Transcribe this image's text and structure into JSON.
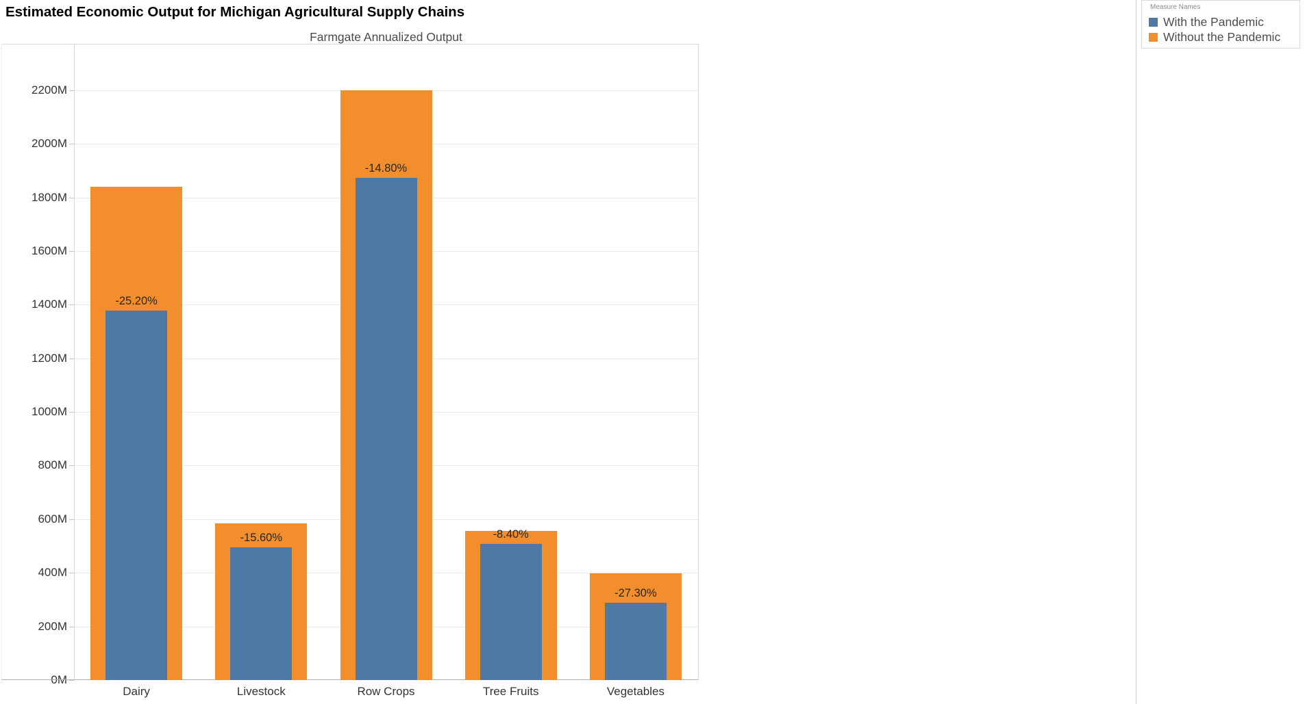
{
  "page": {
    "title": "Estimated Economic Output for Michigan Agricultural Supply Chains"
  },
  "chart_data": {
    "type": "bar",
    "title": "Farmgate Annualized Output",
    "units": "millions USD",
    "categories": [
      "Dairy",
      "Livestock",
      "Row Crops",
      "Tree Fruits",
      "Vegetables"
    ],
    "series": [
      {
        "name": "With the Pandemic",
        "color": "#4e79a7",
        "values": [
          1377,
          494,
          1874,
          509,
          289
        ]
      },
      {
        "name": "Without the Pandemic",
        "color": "#f28e2b",
        "values": [
          1841,
          585,
          2199,
          556,
          397
        ]
      }
    ],
    "bar_labels": [
      "-25.20%",
      "-15.60%",
      "-14.80%",
      "-8.40%",
      "-27.30%"
    ],
    "y_tick_values": [
      0,
      200,
      400,
      600,
      800,
      1000,
      1200,
      1400,
      1600,
      1800,
      2000,
      2200
    ],
    "y_tick_labels": [
      "0M",
      "200M",
      "400M",
      "600M",
      "800M",
      "1000M",
      "1200M",
      "1400M",
      "1600M",
      "1800M",
      "2000M",
      "2200M"
    ],
    "ylim": [
      0,
      2373
    ],
    "grid": true,
    "legend_position": "top-right"
  },
  "legend": {
    "title": "Measure Names",
    "items": [
      {
        "label": "With the Pandemic",
        "color": "#4e79a7"
      },
      {
        "label": "Without the Pandemic",
        "color": "#f28e2b"
      }
    ]
  }
}
